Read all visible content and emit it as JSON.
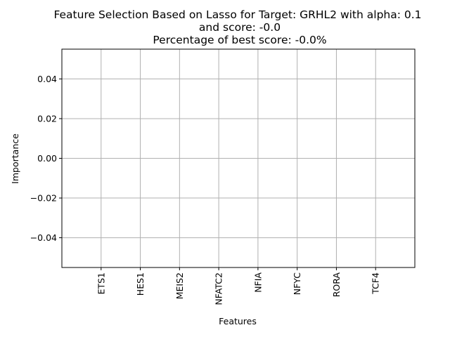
{
  "chart_data": {
    "type": "bar",
    "title_lines": [
      "Feature Selection Based on Lasso for Target: GRHL2 with alpha: 0.1",
      "and score: -0.0",
      "Percentage of best score: -0.0%"
    ],
    "xlabel": "Features",
    "ylabel": "Importance",
    "categories": [
      "ETS1",
      "HES1",
      "MEIS2",
      "NFATC2",
      "NFIA",
      "NFYC",
      "RORA",
      "TCF4"
    ],
    "values": [
      0,
      0,
      0,
      0,
      0,
      0,
      0,
      0
    ],
    "ylim": [
      -0.055,
      0.055
    ],
    "yticks": [
      -0.04,
      -0.02,
      0.0,
      0.02,
      0.04
    ],
    "ytick_labels": [
      "−0.04",
      "−0.02",
      "0.00",
      "0.02",
      "0.04"
    ],
    "grid": true,
    "bar_color": "#1f77b4",
    "grid_color": "#b0b0b0"
  }
}
